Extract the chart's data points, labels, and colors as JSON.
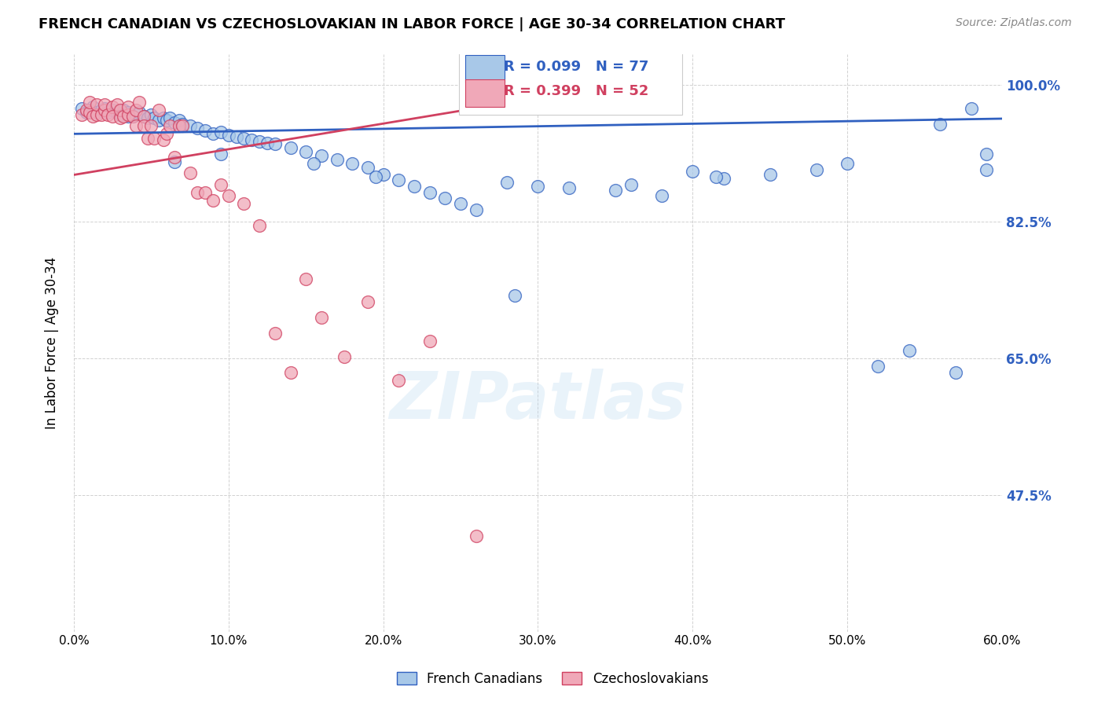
{
  "title": "FRENCH CANADIAN VS CZECHOSLOVAKIAN IN LABOR FORCE | AGE 30-34 CORRELATION CHART",
  "source": "Source: ZipAtlas.com",
  "ylabel": "In Labor Force | Age 30-34",
  "xlim": [
    0.0,
    0.6
  ],
  "ylim": [
    0.3,
    1.04
  ],
  "xtick_labels": [
    "0.0%",
    "10.0%",
    "20.0%",
    "30.0%",
    "40.0%",
    "50.0%",
    "60.0%"
  ],
  "xtick_vals": [
    0.0,
    0.1,
    0.2,
    0.3,
    0.4,
    0.5,
    0.6
  ],
  "ytick_labels_right": [
    "47.5%",
    "65.0%",
    "82.5%",
    "100.0%"
  ],
  "ytick_vals_right": [
    0.475,
    0.65,
    0.825,
    1.0
  ],
  "blue_color": "#a8c8e8",
  "pink_color": "#f0a8b8",
  "blue_line_color": "#3060c0",
  "pink_line_color": "#d04060",
  "legend_blue_R": "R = 0.099",
  "legend_blue_N": "N = 77",
  "legend_pink_R": "R = 0.399",
  "legend_pink_N": "N = 52",
  "watermark": "ZIPatlas",
  "blue_scatter_x": [
    0.005,
    0.008,
    0.01,
    0.012,
    0.015,
    0.018,
    0.02,
    0.022,
    0.025,
    0.028,
    0.03,
    0.032,
    0.035,
    0.038,
    0.04,
    0.042,
    0.045,
    0.048,
    0.05,
    0.052,
    0.055,
    0.058,
    0.06,
    0.062,
    0.065,
    0.068,
    0.07,
    0.075,
    0.08,
    0.085,
    0.09,
    0.095,
    0.1,
    0.105,
    0.11,
    0.115,
    0.12,
    0.125,
    0.13,
    0.14,
    0.15,
    0.16,
    0.17,
    0.18,
    0.19,
    0.2,
    0.21,
    0.22,
    0.23,
    0.24,
    0.25,
    0.26,
    0.28,
    0.3,
    0.32,
    0.35,
    0.38,
    0.4,
    0.42,
    0.45,
    0.48,
    0.5,
    0.52,
    0.54,
    0.56,
    0.57,
    0.58,
    0.59,
    0.59,
    0.035,
    0.065,
    0.095,
    0.155,
    0.195,
    0.285,
    0.36,
    0.415
  ],
  "blue_scatter_y": [
    0.97,
    0.965,
    0.968,
    0.972,
    0.965,
    0.968,
    0.97,
    0.965,
    0.968,
    0.965,
    0.962,
    0.968,
    0.965,
    0.96,
    0.962,
    0.965,
    0.96,
    0.958,
    0.962,
    0.958,
    0.955,
    0.958,
    0.955,
    0.958,
    0.952,
    0.955,
    0.95,
    0.948,
    0.945,
    0.942,
    0.938,
    0.94,
    0.936,
    0.934,
    0.932,
    0.93,
    0.928,
    0.926,
    0.925,
    0.92,
    0.915,
    0.91,
    0.905,
    0.9,
    0.895,
    0.885,
    0.878,
    0.87,
    0.862,
    0.855,
    0.848,
    0.84,
    0.875,
    0.87,
    0.868,
    0.865,
    0.858,
    0.89,
    0.88,
    0.885,
    0.892,
    0.9,
    0.64,
    0.66,
    0.95,
    0.632,
    0.97,
    0.892,
    0.912,
    0.96,
    0.902,
    0.912,
    0.9,
    0.882,
    0.73,
    0.872,
    0.882
  ],
  "pink_scatter_x": [
    0.005,
    0.008,
    0.01,
    0.01,
    0.012,
    0.015,
    0.015,
    0.018,
    0.02,
    0.02,
    0.022,
    0.025,
    0.025,
    0.028,
    0.03,
    0.03,
    0.032,
    0.035,
    0.035,
    0.038,
    0.04,
    0.04,
    0.042,
    0.045,
    0.045,
    0.048,
    0.05,
    0.052,
    0.055,
    0.058,
    0.06,
    0.062,
    0.065,
    0.068,
    0.07,
    0.075,
    0.08,
    0.085,
    0.09,
    0.095,
    0.1,
    0.11,
    0.12,
    0.13,
    0.14,
    0.15,
    0.16,
    0.175,
    0.19,
    0.21,
    0.23,
    0.26
  ],
  "pink_scatter_y": [
    0.962,
    0.968,
    0.965,
    0.978,
    0.96,
    0.962,
    0.975,
    0.962,
    0.968,
    0.975,
    0.962,
    0.972,
    0.96,
    0.975,
    0.958,
    0.968,
    0.96,
    0.962,
    0.972,
    0.96,
    0.968,
    0.948,
    0.978,
    0.96,
    0.948,
    0.932,
    0.948,
    0.932,
    0.968,
    0.93,
    0.938,
    0.948,
    0.908,
    0.948,
    0.948,
    0.888,
    0.862,
    0.862,
    0.852,
    0.872,
    0.858,
    0.848,
    0.82,
    0.682,
    0.632,
    0.752,
    0.702,
    0.652,
    0.722,
    0.622,
    0.672,
    0.422
  ],
  "blue_line_x": [
    0.0,
    0.6
  ],
  "blue_line_y": [
    0.9375,
    0.957
  ],
  "pink_line_x": [
    0.0,
    0.265
  ],
  "pink_line_y": [
    0.885,
    0.972
  ]
}
